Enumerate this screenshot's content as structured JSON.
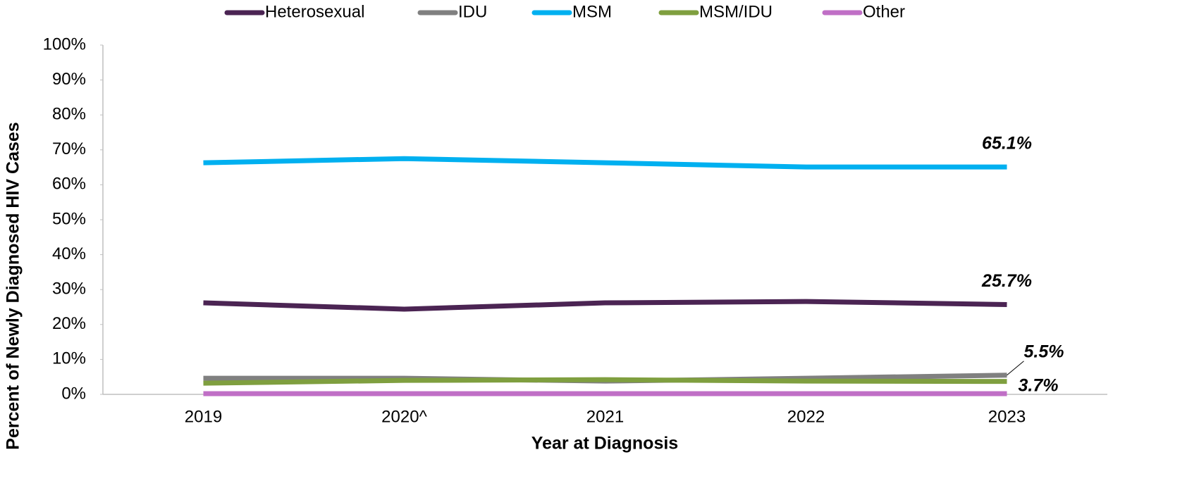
{
  "chart_data": {
    "type": "line",
    "categories": [
      "2019",
      "2020^",
      "2021",
      "2022",
      "2023"
    ],
    "series": [
      {
        "name": "Heterosexual",
        "color": "#4b2453",
        "values": [
          26.2,
          24.4,
          26.2,
          26.6,
          25.7
        ],
        "value_labels": [
          null,
          null,
          null,
          null,
          "25.7%"
        ]
      },
      {
        "name": "IDU",
        "color": "#808080",
        "values": [
          4.6,
          4.6,
          3.8,
          4.6,
          5.5
        ],
        "value_labels": [
          null,
          null,
          null,
          null,
          "5.5%"
        ]
      },
      {
        "name": "MSM",
        "color": "#00b0f0",
        "values": [
          66.3,
          67.5,
          66.3,
          65.1,
          65.1
        ],
        "value_labels": [
          null,
          null,
          null,
          null,
          "65.1%"
        ]
      },
      {
        "name": "MSM/IDU",
        "color": "#7f9f3f",
        "values": [
          3.2,
          4.0,
          4.2,
          3.8,
          3.7
        ],
        "value_labels": [
          null,
          null,
          null,
          null,
          "3.7%"
        ]
      },
      {
        "name": "Other",
        "color": "#c06fc6",
        "values": [
          0.2,
          0.2,
          0.2,
          0.2,
          0.2
        ]
      }
    ],
    "ylim": [
      0,
      100
    ],
    "yticks": [
      {
        "value": 0,
        "label": "0%"
      },
      {
        "value": 10,
        "label": "10%"
      },
      {
        "value": 20,
        "label": "20%"
      },
      {
        "value": 30,
        "label": "30%"
      },
      {
        "value": 40,
        "label": "40%"
      },
      {
        "value": 50,
        "label": "50%"
      },
      {
        "value": 60,
        "label": "60%"
      },
      {
        "value": 70,
        "label": "70%"
      },
      {
        "value": 80,
        "label": "80%"
      },
      {
        "value": 90,
        "label": "90%"
      },
      {
        "value": 100,
        "label": "100%"
      }
    ],
    "xlabel": "Year at Diagnosis",
    "ylabel": "Percent of Newly Diagnosed HIV Cases",
    "legend": "top"
  }
}
